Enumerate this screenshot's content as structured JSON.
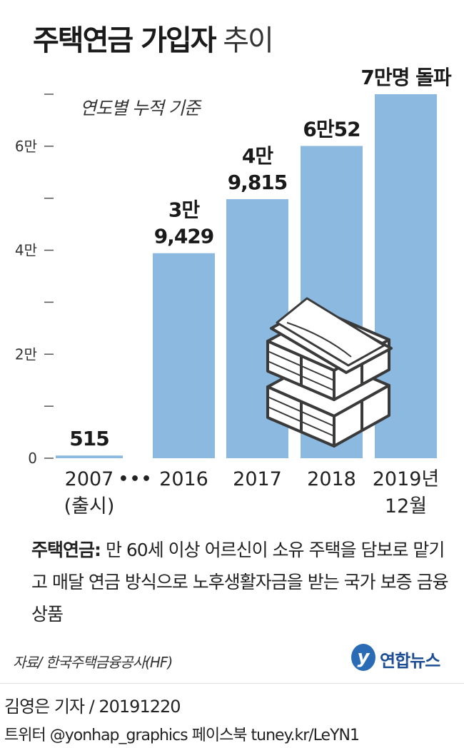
{
  "header": {
    "title_bold": "주택연금 가입자",
    "title_light": "추이",
    "subtitle": "연도별 누적 기준"
  },
  "chart_data": {
    "type": "bar",
    "title": "주택연금 가입자 추이",
    "subtitle": "연도별 누적 기준",
    "categories": [
      "2007 (출시)",
      "2016",
      "2017",
      "2018",
      "2019년 12월"
    ],
    "category_lines": [
      [
        "2007",
        "(출시)"
      ],
      [
        "2016"
      ],
      [
        "2017"
      ],
      [
        "2018"
      ],
      [
        "2019년",
        "12월"
      ]
    ],
    "values": [
      515,
      39429,
      49815,
      60052,
      70000
    ],
    "data_labels": [
      [
        "515"
      ],
      [
        "3만",
        "9,429"
      ],
      [
        "4만",
        "9,815"
      ],
      [
        "6만52"
      ],
      [
        "7만명 돌파"
      ]
    ],
    "ylim": [
      0,
      70000
    ],
    "yticks": [
      0,
      10000,
      20000,
      30000,
      40000,
      50000,
      60000,
      70000
    ],
    "ytick_labels": [
      "0",
      "",
      "2만",
      "",
      "4만",
      "",
      "6만",
      ""
    ],
    "axis_break_marker": "•••",
    "grid": false,
    "legend": "none",
    "bar_color": "#8cb9e0",
    "label_color": "#1a1a1a"
  },
  "note": {
    "key": "주택연금:",
    "text": " 만 60세 이상 어르신이 소유 주택을 담보로 맡기고 매달 연금 방식으로 노후생활자금을 받는 국가 보증 금융상품"
  },
  "source": "자료/ 한국주택금융공사(HF)",
  "logo": {
    "mark": "y",
    "name": "연합뉴스",
    "color": "#1d4e95"
  },
  "footer": {
    "reporter": "김영은 기자 / 20191220",
    "social": "트위터 @yonhap_graphics  페이스북 tuney.kr/LeYN1"
  },
  "illustration": {
    "icon": "money-stack-icon"
  }
}
